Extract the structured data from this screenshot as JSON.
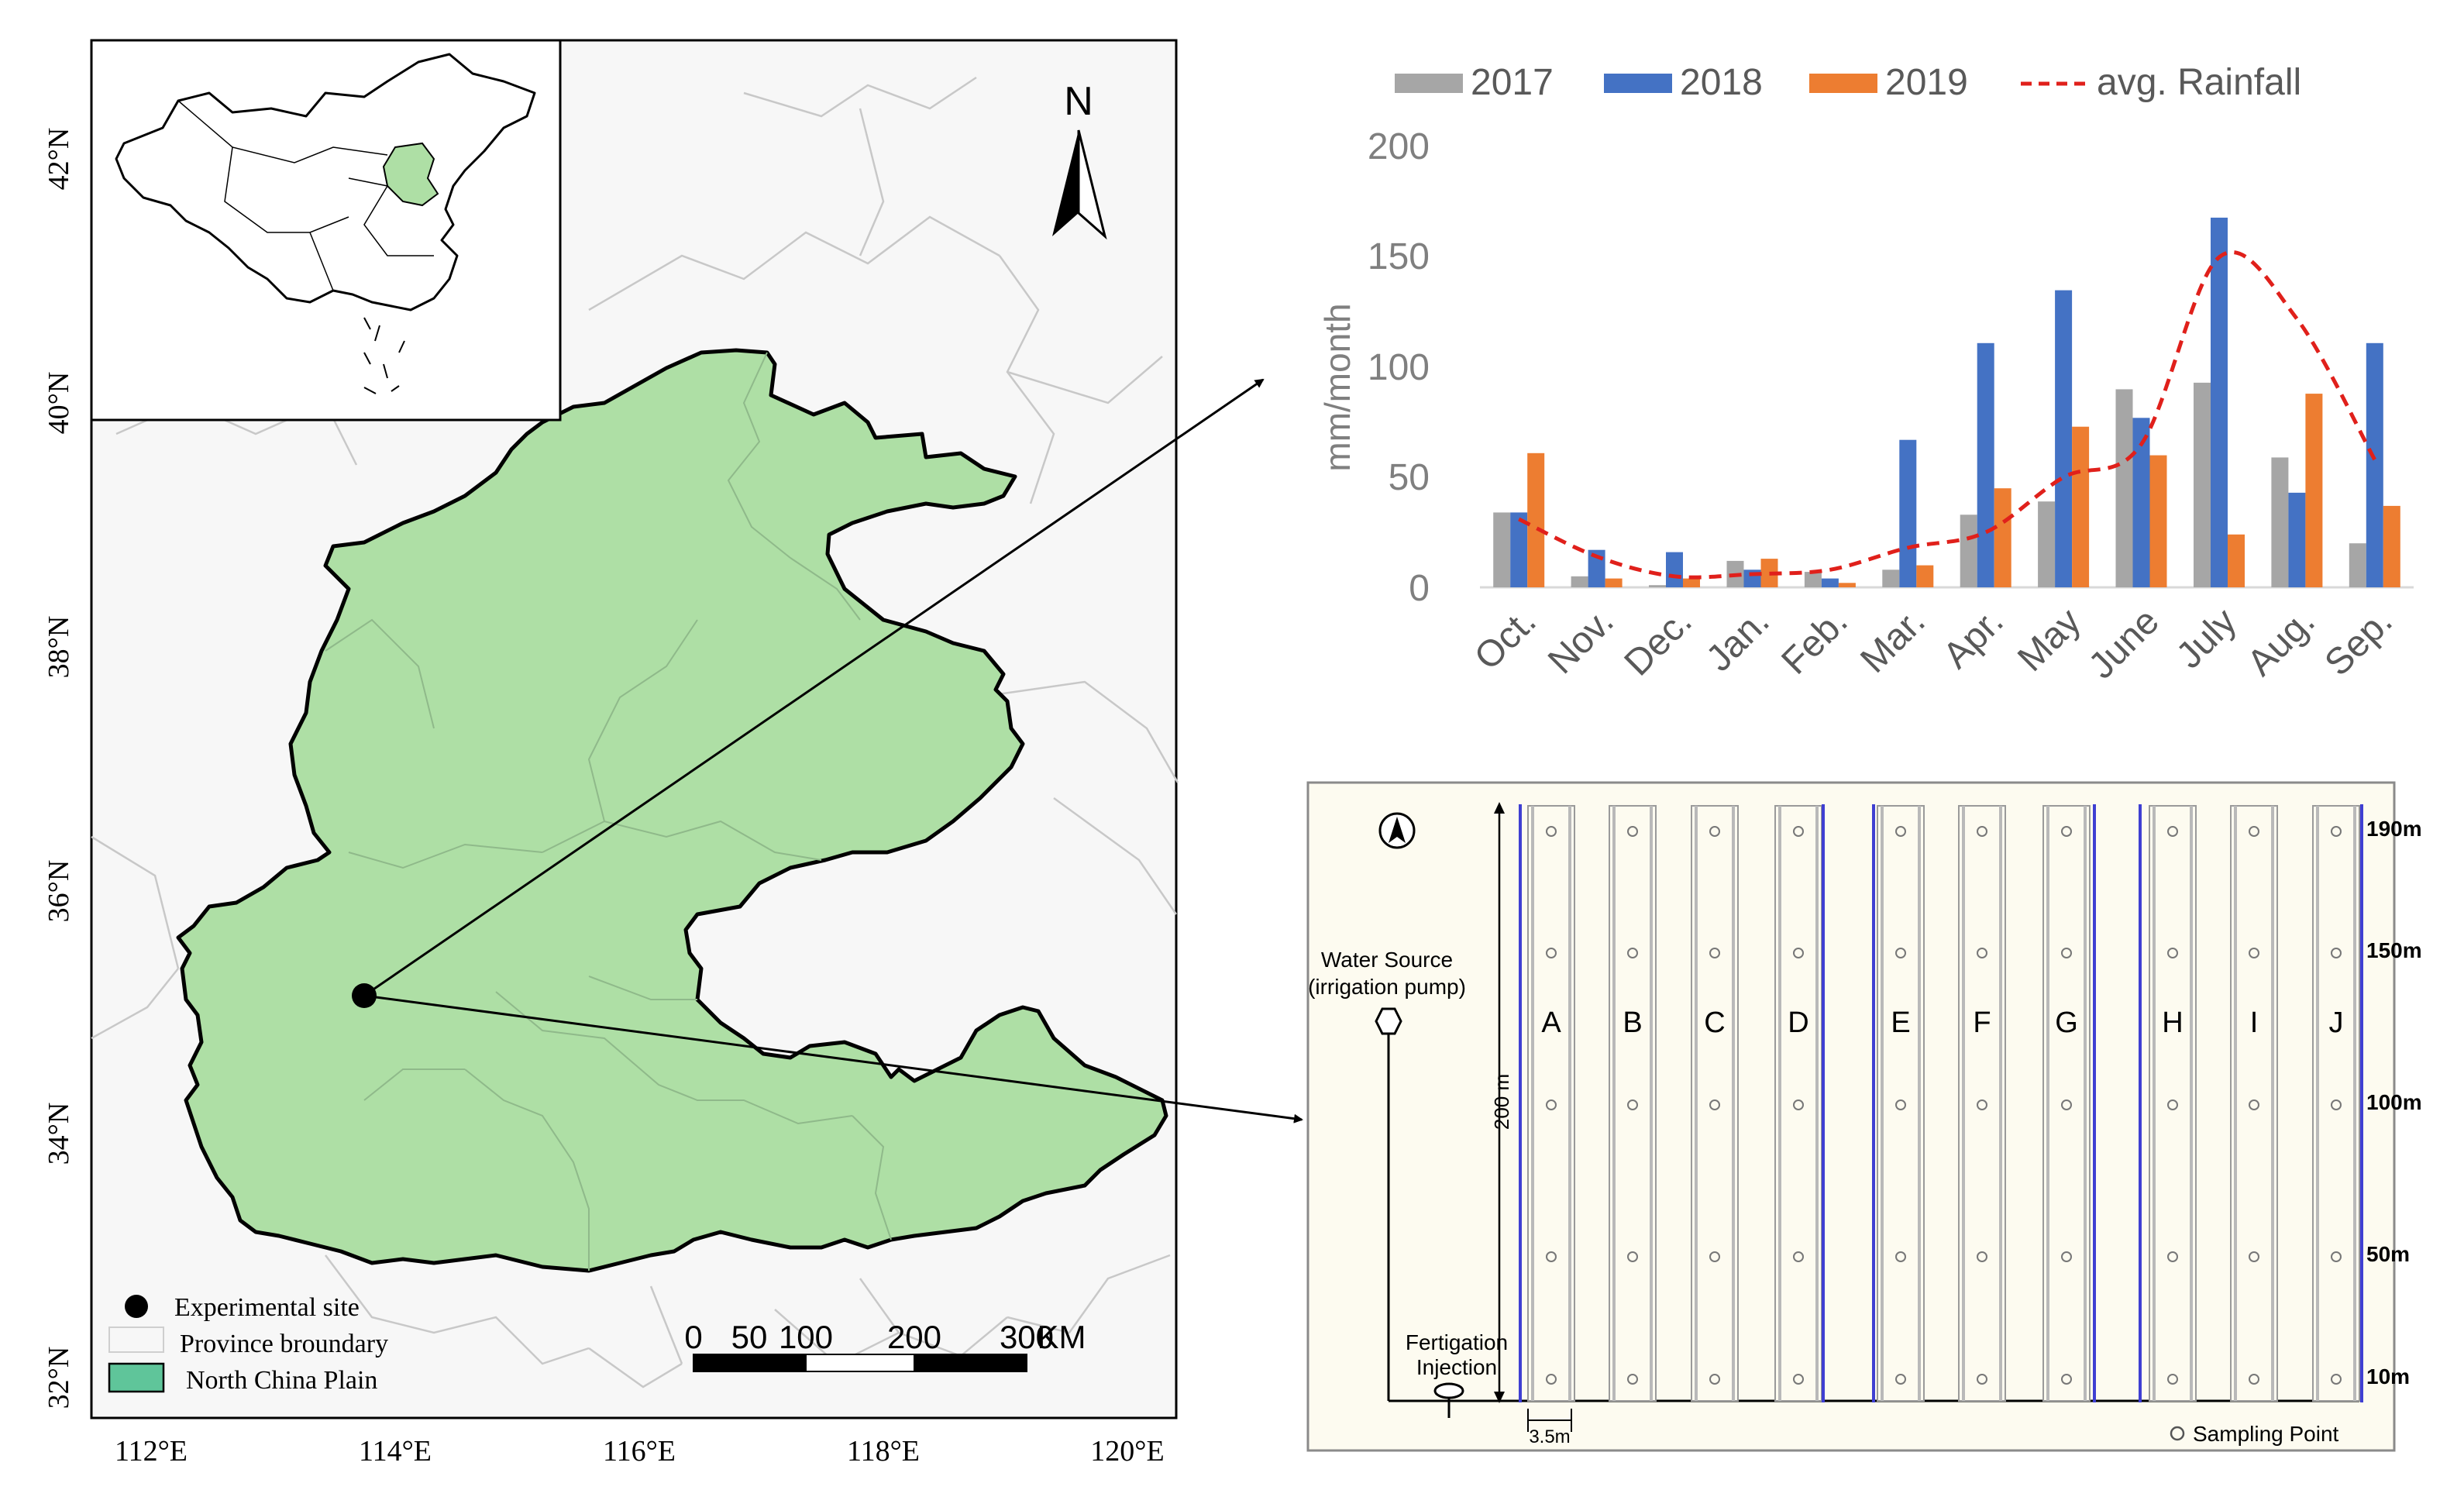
{
  "map": {
    "lat_labels": [
      "42°N",
      "40°N",
      "38°N",
      "36°N",
      "34°N",
      "32°N"
    ],
    "lon_labels": [
      "112°E",
      "114°E",
      "116°E",
      "118°E",
      "120°E"
    ],
    "north_label": "N",
    "legend": {
      "site": "Experimental site",
      "province": "Province broundary",
      "plain": "North China Plain"
    },
    "scale": {
      "ticks": [
        "0",
        "50",
        "100",
        "200",
        "300"
      ],
      "unit": "KM"
    },
    "colors": {
      "plain": "#aedfa5",
      "legend_plain": "#5fc59a",
      "background": "#f7f7f7"
    }
  },
  "chart_data": {
    "type": "bar",
    "title": "",
    "xlabel": "",
    "ylabel": "mm/month",
    "ylim": [
      0,
      200
    ],
    "yticks": [
      "200",
      "150",
      "100",
      "50",
      "0"
    ],
    "categories": [
      "Oct.",
      "Nov.",
      "Dec.",
      "Jan.",
      "Feb.",
      "Mar.",
      "Apr.",
      "May",
      "June",
      "July",
      "Aug.",
      "Sep."
    ],
    "series": [
      {
        "name": "2017",
        "color": "#a6a6a6",
        "values": [
          34,
          5,
          1,
          12,
          7,
          8,
          33,
          39,
          90,
          93,
          59,
          20
        ]
      },
      {
        "name": "2018",
        "color": "#4472c4",
        "values": [
          34,
          17,
          16,
          8,
          4,
          67,
          111,
          135,
          77,
          168,
          43,
          111
        ]
      },
      {
        "name": "2019",
        "color": "#ed7d31",
        "values": [
          61,
          4,
          4,
          13,
          2,
          10,
          45,
          73,
          60,
          24,
          88,
          37
        ]
      }
    ],
    "line": {
      "name": "avg. Rainfall",
      "color": "#e0201b",
      "values": [
        31,
        14,
        5,
        6,
        8,
        18,
        25,
        50,
        65,
        150,
        122,
        58
      ]
    }
  },
  "layout_plan": {
    "north_label": "N",
    "water_source_1": "Water Source",
    "water_source_2": "(irrigation pump)",
    "fertigation_1": "Fertigation",
    "fertigation_2": "Injection",
    "length_label": "200 m",
    "width_label": "3.5m",
    "plots": [
      "A",
      "B",
      "C",
      "D",
      "E",
      "F",
      "G",
      "H",
      "I",
      "J"
    ],
    "distances": [
      "190m",
      "150m",
      "100m",
      "50m",
      "10m"
    ],
    "sampling_legend": "Sampling Point"
  }
}
